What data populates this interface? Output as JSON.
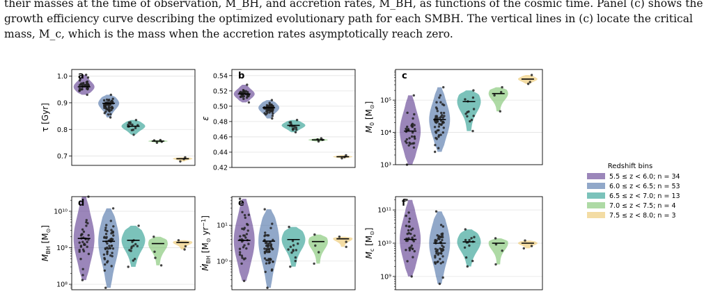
{
  "caption": {
    "lines": [
      "their masses at the time of observation, M_BH, and accretion rates, Ṁ_BH, as functions of the cosmic time. Panel (c) shows the",
      "growth efficiency curve describing the optimized evolutionary path for each SMBH. The vertical lines in (c) locate the critical",
      "mass, M_c, which is the mass when the accretion rates asymptotically reach zero."
    ]
  },
  "legend": {
    "title": "Redshift bins",
    "entries": [
      {
        "label": "5.5 ≤ z < 6.0; n = 34",
        "color": "#5e3c8f"
      },
      {
        "label": "6.0 ≤ z < 6.5; n = 53",
        "color": "#4e72a8"
      },
      {
        "label": "6.5 ≤ z < 7.0; n = 13",
        "color": "#2a9d8f"
      },
      {
        "label": "7.0 ≤ z < 7.5; n = 4",
        "color": "#7cc46e"
      },
      {
        "label": "7.5 ≤ z < 8.0; n = 3",
        "color": "#ecc66c"
      }
    ]
  },
  "chart_data": [
    {
      "type": "violin",
      "panel": "a",
      "ylabel": "τ [Gyr]",
      "scale": "linear",
      "ylim": [
        0.665,
        1.025
      ],
      "yticks": [
        0.7,
        0.8,
        0.9,
        1.0
      ],
      "yticklabels": [
        "0.7",
        "0.8",
        "0.9",
        "1.0"
      ],
      "groups": [
        {
          "bin": "5.5 ≤ z < 6.0",
          "median": 0.96,
          "min": 0.93,
          "max": 1.005,
          "n": 34
        },
        {
          "bin": "6.0 ≤ z < 6.5",
          "median": 0.898,
          "min": 0.845,
          "max": 0.93,
          "n": 53
        },
        {
          "bin": "6.5 ≤ z < 7.0",
          "median": 0.812,
          "min": 0.78,
          "max": 0.835,
          "n": 13
        },
        {
          "bin": "7.0 ≤ z < 7.5",
          "median": 0.756,
          "min": 0.75,
          "max": 0.76,
          "n": 4
        },
        {
          "bin": "7.5 ≤ z < 8.0",
          "median": 0.69,
          "min": 0.68,
          "max": 0.695,
          "n": 3
        }
      ]
    },
    {
      "type": "violin",
      "panel": "b",
      "ylabel": "ε",
      "scale": "linear",
      "ylim": [
        0.42,
        0.548
      ],
      "yticks": [
        0.42,
        0.44,
        0.46,
        0.48,
        0.5,
        0.52,
        0.54
      ],
      "yticklabels": [
        "0.42",
        "0.44",
        "0.46",
        "0.48",
        "0.50",
        "0.52",
        "0.54"
      ],
      "groups": [
        {
          "bin": "5.5 ≤ z < 6.0",
          "median": 0.516,
          "min": 0.505,
          "max": 0.528,
          "n": 34
        },
        {
          "bin": "6.0 ≤ z < 6.5",
          "median": 0.498,
          "min": 0.484,
          "max": 0.508,
          "n": 53
        },
        {
          "bin": "6.5 ≤ z < 7.0",
          "median": 0.475,
          "min": 0.466,
          "max": 0.482,
          "n": 13
        },
        {
          "bin": "7.0 ≤ z < 7.5",
          "median": 0.456,
          "min": 0.454,
          "max": 0.458,
          "n": 4
        },
        {
          "bin": "7.5 ≤ z < 8.0",
          "median": 0.434,
          "min": 0.432,
          "max": 0.436,
          "n": 3
        }
      ]
    },
    {
      "type": "violin",
      "panel": "c",
      "ylabel": "M_0 [M_⊙]",
      "scale": "log",
      "ylim": [
        3,
        5.95
      ],
      "yticks": [
        3,
        4,
        5
      ],
      "yticklabels": [
        "10³",
        "10⁴",
        "10⁵"
      ],
      "groups": [
        {
          "bin": "5.5 ≤ z < 6.0",
          "median": 11000,
          "min": 1000,
          "max": 140000,
          "n": 34
        },
        {
          "bin": "6.0 ≤ z < 6.5",
          "median": 25000,
          "min": 2500,
          "max": 250000,
          "n": 53
        },
        {
          "bin": "6.5 ≤ z < 7.0",
          "median": 90000,
          "min": 11000,
          "max": 200000,
          "n": 13
        },
        {
          "bin": "7.0 ≤ z < 7.5",
          "median": 160000,
          "min": 45000,
          "max": 250000,
          "n": 4
        },
        {
          "bin": "7.5 ≤ z < 8.0",
          "median": 450000,
          "min": 320000,
          "max": 600000,
          "n": 3
        }
      ]
    },
    {
      "type": "violin",
      "panel": "d",
      "ylabel": "M_BH [M_⊙]",
      "scale": "log",
      "ylim": [
        7.85,
        10.4
      ],
      "yticks": [
        8,
        9,
        10
      ],
      "yticklabels": [
        "10⁸",
        "10⁹",
        "10¹⁰"
      ],
      "groups": [
        {
          "bin": "5.5 ≤ z < 6.0",
          "median": 1800000000,
          "min": 130000000,
          "max": 25000000000,
          "n": 34
        },
        {
          "bin": "6.0 ≤ z < 6.5",
          "median": 1500000000,
          "min": 80000000,
          "max": 12000000000,
          "n": 53
        },
        {
          "bin": "6.5 ≤ z < 7.0",
          "median": 1600000000,
          "min": 300000000,
          "max": 4000000000,
          "n": 13
        },
        {
          "bin": "7.0 ≤ z < 7.5",
          "median": 1300000000,
          "min": 330000000,
          "max": 2000000000,
          "n": 4
        },
        {
          "bin": "7.5 ≤ z < 8.0",
          "median": 1400000000,
          "min": 900000000,
          "max": 1600000000,
          "n": 3
        }
      ]
    },
    {
      "type": "violin",
      "panel": "e",
      "ylabel": "Ṁ_BH [M_⊙ yr⁻¹]",
      "scale": "log",
      "ylim": [
        -0.8,
        1.8
      ],
      "yticks": [
        0,
        1
      ],
      "yticklabels": [
        "10⁰",
        "10¹"
      ],
      "groups": [
        {
          "bin": "5.5 ≤ z < 6.0",
          "median": 3.8,
          "min": 0.28,
          "max": 55,
          "n": 34
        },
        {
          "bin": "6.0 ≤ z < 6.5",
          "median": 3.6,
          "min": 0.18,
          "max": 28,
          "n": 53
        },
        {
          "bin": "6.5 ≤ z < 7.0",
          "median": 4.0,
          "min": 0.7,
          "max": 9,
          "n": 13
        },
        {
          "bin": "7.0 ≤ z < 7.5",
          "median": 3.5,
          "min": 0.85,
          "max": 5.5,
          "n": 4
        },
        {
          "bin": "7.5 ≤ z < 8.0",
          "median": 4.2,
          "min": 2.5,
          "max": 4.8,
          "n": 3
        }
      ]
    },
    {
      "type": "violin",
      "panel": "f",
      "ylabel": "M_c [M_⊙]",
      "scale": "log",
      "ylim": [
        8.6,
        11.4
      ],
      "yticks": [
        9,
        10,
        11
      ],
      "yticklabels": [
        "10⁹",
        "10¹⁰",
        "10¹¹"
      ],
      "groups": [
        {
          "bin": "5.5 ≤ z < 6.0",
          "median": 13000000000,
          "min": 1000000000,
          "max": 200000000000,
          "n": 34
        },
        {
          "bin": "6.0 ≤ z < 6.5",
          "median": 10000000000,
          "min": 600000000,
          "max": 90000000000,
          "n": 53
        },
        {
          "bin": "6.5 ≤ z < 7.0",
          "median": 11000000000,
          "min": 2000000000,
          "max": 26000000000,
          "n": 13
        },
        {
          "bin": "7.0 ≤ z < 7.5",
          "median": 10000000000,
          "min": 2300000000,
          "max": 14000000000,
          "n": 4
        },
        {
          "bin": "7.5 ≤ z < 8.0",
          "median": 10000000000,
          "min": 7000000000,
          "max": 12000000000,
          "n": 3
        }
      ]
    }
  ]
}
